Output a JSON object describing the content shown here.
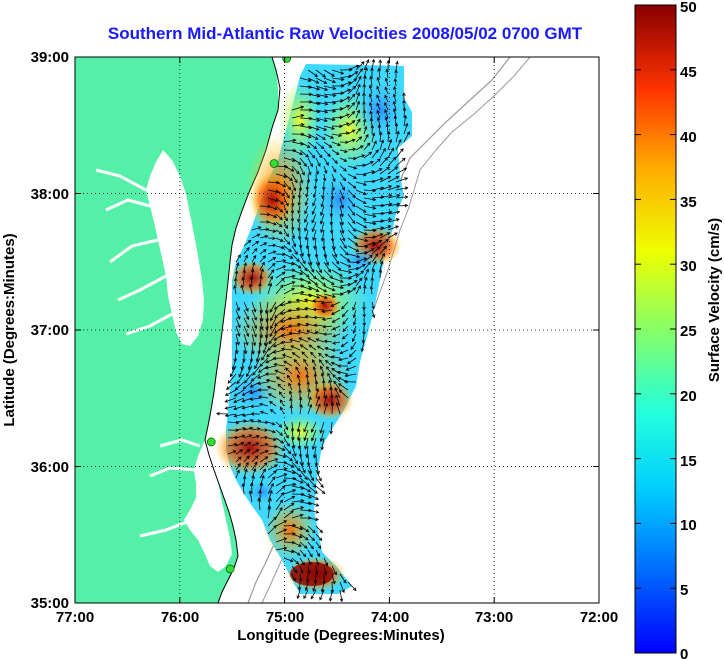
{
  "title": "Southern Mid-Atlantic Raw Velocities 2008/05/02 0700 GMT",
  "x_axis": {
    "label": "Longitude (Degrees:Minutes)",
    "ticks": [
      "77:00",
      "76:00",
      "75:00",
      "74:00",
      "73:00",
      "72:00"
    ]
  },
  "y_axis": {
    "label": "Latitude (Degrees:Minutes)",
    "ticks": [
      "39:00",
      "38:00",
      "37:00",
      "36:00",
      "35:00"
    ]
  },
  "colorbar": {
    "label": "Surface Velocity (cm/s)",
    "ticks": [
      "50",
      "45",
      "40",
      "35",
      "30",
      "25",
      "20",
      "15",
      "10",
      "5",
      "0"
    ],
    "min": 0,
    "max": 50,
    "colormap": "jet"
  },
  "colors": {
    "land": "#55f0a8",
    "water": "#ffffff",
    "title": "#1a1aff",
    "site_markers": "#33dd33"
  },
  "map": {
    "lon_range": [
      -77,
      -72
    ],
    "lat_range": [
      35,
      39
    ],
    "grid": "dotted",
    "radar_sites": [
      {
        "lon": -74.98,
        "lat": 38.99
      },
      {
        "lon": -75.1,
        "lat": 38.22
      },
      {
        "lon": -75.7,
        "lat": 36.18
      },
      {
        "lon": -75.52,
        "lat": 35.25
      }
    ]
  }
}
